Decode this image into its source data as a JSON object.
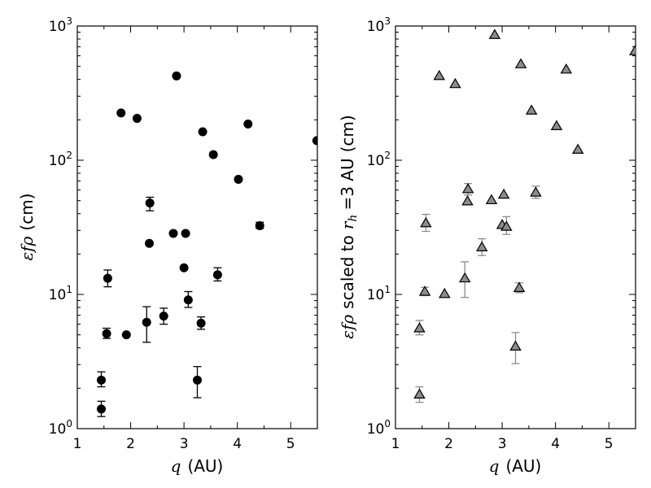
{
  "chart_data": [
    {
      "type": "scatter",
      "title": "",
      "xlabel": {
        "symbol": "q",
        "unit": "(AU)"
      },
      "ylabel": {
        "symbol": "εfρ",
        "unit": "(cm)"
      },
      "xlim": [
        1,
        5.5
      ],
      "ylim": [
        1,
        1000
      ],
      "yscale": "log",
      "grid": false,
      "xticks": [
        "1",
        "2",
        "3",
        "4",
        "5"
      ],
      "yticks": [
        {
          "base": "10",
          "exp": "0",
          "value": 1
        },
        {
          "base": "10",
          "exp": "1",
          "value": 10
        },
        {
          "base": "10",
          "exp": "2",
          "value": 100
        },
        {
          "base": "10",
          "exp": "3",
          "value": 1000
        }
      ],
      "marker": "circle",
      "marker_color": "#000000",
      "errorbar_color": "#000000",
      "points": [
        {
          "x": 1.45,
          "y": 1.4,
          "yerr": [
            1.23,
            1.6
          ]
        },
        {
          "x": 1.45,
          "y": 2.3,
          "yerr": [
            2.05,
            2.65
          ]
        },
        {
          "x": 1.55,
          "y": 5.1,
          "yerr": [
            4.7,
            5.6
          ]
        },
        {
          "x": 1.57,
          "y": 13.2,
          "yerr": [
            11.4,
            15.2
          ]
        },
        {
          "x": 1.82,
          "y": 225
        },
        {
          "x": 1.92,
          "y": 5.0
        },
        {
          "x": 2.12,
          "y": 205
        },
        {
          "x": 2.3,
          "y": 6.2,
          "yerr": [
            4.4,
            8.1
          ]
        },
        {
          "x": 2.35,
          "y": 24
        },
        {
          "x": 2.36,
          "y": 48,
          "yerr": [
            42,
            53
          ]
        },
        {
          "x": 2.62,
          "y": 6.9,
          "yerr": [
            6.0,
            7.9
          ]
        },
        {
          "x": 2.8,
          "y": 28.5
        },
        {
          "x": 2.86,
          "y": 425
        },
        {
          "x": 3.0,
          "y": 15.8
        },
        {
          "x": 3.03,
          "y": 28.5
        },
        {
          "x": 3.08,
          "y": 9.1,
          "yerr": [
            8.0,
            10.5
          ]
        },
        {
          "x": 3.25,
          "y": 2.3,
          "yerr": [
            1.7,
            2.9
          ]
        },
        {
          "x": 3.32,
          "y": 6.1,
          "yerr": [
            5.5,
            6.8
          ]
        },
        {
          "x": 3.35,
          "y": 163
        },
        {
          "x": 3.55,
          "y": 110
        },
        {
          "x": 3.63,
          "y": 14,
          "yerr": [
            12.6,
            15.8
          ]
        },
        {
          "x": 4.02,
          "y": 72
        },
        {
          "x": 4.2,
          "y": 186
        },
        {
          "x": 4.42,
          "y": 32.5,
          "yerr": [
            31,
            34.5
          ]
        },
        {
          "x": 5.49,
          "y": 140
        }
      ]
    },
    {
      "type": "scatter",
      "title": "",
      "xlabel": {
        "symbol": "q",
        "unit": "(AU)"
      },
      "ylabel": {
        "symbol": "εfρ",
        "text": "scaled to",
        "sub_symbol": "r",
        "sub_index": "h",
        "equals": "=3 AU",
        "unit": "(cm)"
      },
      "xlim": [
        1,
        5.5
      ],
      "ylim": [
        1,
        1000
      ],
      "yscale": "log",
      "grid": false,
      "xticks": [
        "1",
        "2",
        "3",
        "4",
        "5"
      ],
      "yticks": [
        {
          "base": "10",
          "exp": "0",
          "value": 1
        },
        {
          "base": "10",
          "exp": "1",
          "value": 10
        },
        {
          "base": "10",
          "exp": "2",
          "value": 100
        },
        {
          "base": "10",
          "exp": "3",
          "value": 1000
        }
      ],
      "marker": "triangle",
      "marker_color": "#8c8c8c",
      "errorbar_color": "#8c8c8c",
      "points": [
        {
          "x": 1.45,
          "y": 1.8,
          "yerr": [
            1.57,
            2.05
          ]
        },
        {
          "x": 1.45,
          "y": 5.6,
          "yerr": [
            5.0,
            6.4
          ]
        },
        {
          "x": 1.55,
          "y": 10.5,
          "yerr": [
            9.8,
            11.3
          ]
        },
        {
          "x": 1.57,
          "y": 34,
          "yerr": [
            29.5,
            39.5
          ]
        },
        {
          "x": 1.82,
          "y": 425
        },
        {
          "x": 1.92,
          "y": 10.1
        },
        {
          "x": 2.12,
          "y": 370
        },
        {
          "x": 2.3,
          "y": 13.2,
          "yerr": [
            9.5,
            17.5
          ]
        },
        {
          "x": 2.35,
          "y": 49.5
        },
        {
          "x": 2.36,
          "y": 61,
          "yerr": [
            55,
            67
          ]
        },
        {
          "x": 2.62,
          "y": 22.5,
          "yerr": [
            19.5,
            26
          ]
        },
        {
          "x": 2.8,
          "y": 50.5
        },
        {
          "x": 2.86,
          "y": 860
        },
        {
          "x": 3.0,
          "y": 33
        },
        {
          "x": 3.03,
          "y": 55.5
        },
        {
          "x": 3.08,
          "y": 32,
          "yerr": [
            28,
            38
          ]
        },
        {
          "x": 3.25,
          "y": 4.1,
          "yerr": [
            3.05,
            5.2
          ]
        },
        {
          "x": 3.32,
          "y": 11.2,
          "yerr": [
            10.3,
            12.2
          ]
        },
        {
          "x": 3.35,
          "y": 520
        },
        {
          "x": 3.55,
          "y": 235
        },
        {
          "x": 3.63,
          "y": 57.5,
          "yerr": [
            52,
            64
          ]
        },
        {
          "x": 4.02,
          "y": 180
        },
        {
          "x": 4.2,
          "y": 475
        },
        {
          "x": 4.42,
          "y": 120
        },
        {
          "x": 5.49,
          "y": 650
        }
      ]
    }
  ]
}
